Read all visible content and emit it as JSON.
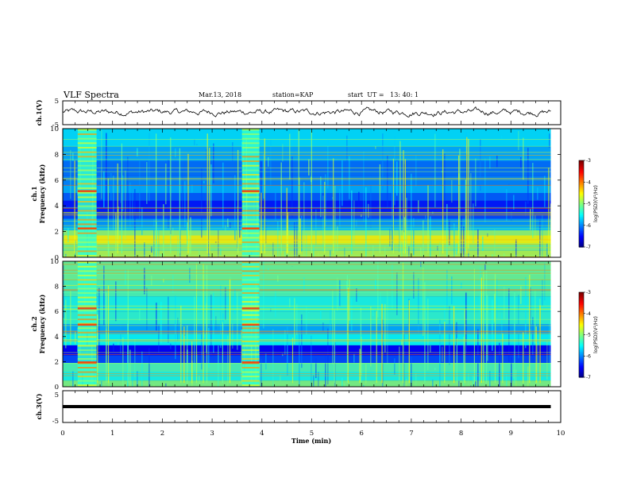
{
  "header": {
    "title": "VLF Spectra",
    "date": "Mar.13, 2018",
    "station": "station=KAP",
    "start": "start  UT =   13: 40: 1"
  },
  "chart_data": [
    {
      "type": "line",
      "panel": "waveform-ch1",
      "ylabel": "ch.1(V)",
      "yticklabels": [
        "5",
        "-5"
      ],
      "ylim": [
        -5,
        5
      ],
      "xlim": [
        0,
        10
      ],
      "x_range": [
        0,
        9.8
      ],
      "y_mean": 0.3,
      "y_amplitude": 1.6
    },
    {
      "type": "heatmap",
      "panel": "spectrogram-ch1",
      "ylabel": "ch.1 Frequency (kHz)",
      "ylabel_line1": "ch.1",
      "ylabel_line2": "Frequency (kHz)",
      "ylim": [
        0,
        10
      ],
      "yticks": [
        0,
        2,
        4,
        6,
        8,
        10
      ],
      "xlim": [
        0,
        10
      ],
      "x_range": [
        0,
        9.8
      ],
      "bursts_min": [
        [
          0.3,
          0.68
        ],
        [
          3.6,
          3.95
        ]
      ],
      "colorbar": {
        "label": "log(PSD)(V²/Hz)",
        "range": [
          -7,
          -3
        ],
        "ticks": [
          -3,
          -4,
          -5,
          -6,
          -7
        ]
      }
    },
    {
      "type": "heatmap",
      "panel": "spectrogram-ch2",
      "ylabel": "ch.2 Frequency (kHz)",
      "ylabel_line1": "ch.2",
      "ylabel_line2": "Frequency (kHz)",
      "ylim": [
        0,
        10
      ],
      "yticks": [
        0,
        2,
        4,
        6,
        8,
        10
      ],
      "xlim": [
        0,
        10
      ],
      "x_range": [
        0,
        9.8
      ],
      "bursts_min": [
        [
          0.3,
          0.68
        ],
        [
          3.6,
          3.95
        ]
      ],
      "colorbar": {
        "label": "log(PSD)(V²/Hz)",
        "range": [
          -7,
          -3
        ],
        "ticks": [
          -3,
          -4,
          -5,
          -6,
          -7
        ]
      }
    },
    {
      "type": "line",
      "panel": "waveform-ch3",
      "ylabel": "ch.3(V)",
      "yticklabels": [
        "5",
        "-5"
      ],
      "ylim": [
        -5,
        5
      ],
      "xlim": [
        0,
        10
      ],
      "x_range": [
        0,
        9.8
      ],
      "y_mean": 0.0,
      "y_amplitude": 0.0
    }
  ],
  "xaxis": {
    "label": "Time (min)",
    "ticks": [
      0,
      1,
      2,
      3,
      4,
      5,
      6,
      7,
      8,
      9,
      10
    ]
  },
  "colors": {
    "axis": "#000000",
    "waveform": "#000000",
    "colormap": [
      "#00007f",
      "#0000ff",
      "#007fff",
      "#00ffff",
      "#7fff7f",
      "#ffff00",
      "#ff7f00",
      "#ff0000",
      "#7f0000"
    ]
  }
}
